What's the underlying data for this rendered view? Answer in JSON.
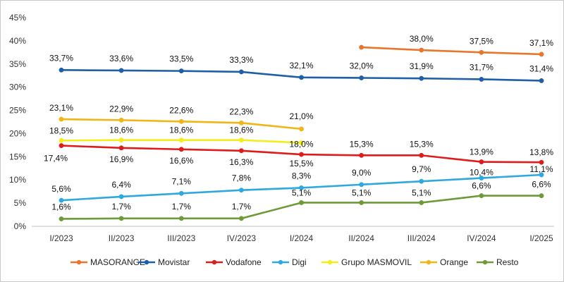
{
  "chart_data": {
    "type": "line",
    "categories": [
      "I/2023",
      "II/2023",
      "III/2023",
      "IV/2023",
      "I/2024",
      "II/2024",
      "III/2024",
      "IV/2024",
      "I/2025"
    ],
    "ylim": [
      0,
      45
    ],
    "yticks": [
      "0%",
      "5%",
      "10%",
      "15%",
      "20%",
      "25%",
      "30%",
      "35%",
      "40%",
      "45%"
    ],
    "grid": false,
    "legend_position": "bottom",
    "series": [
      {
        "name": "MASORANGE",
        "color": "#E8772E",
        "values": [
          null,
          null,
          null,
          null,
          null,
          38.6,
          38.0,
          37.5,
          37.1
        ],
        "labels": [
          null,
          null,
          null,
          null,
          null,
          null,
          "38,0%",
          "37,5%",
          "37,1%"
        ]
      },
      {
        "name": "Movistar",
        "color": "#1F5FA8",
        "values": [
          33.7,
          33.6,
          33.5,
          33.3,
          32.1,
          32.0,
          31.9,
          31.7,
          31.4
        ],
        "labels": [
          "33,7%",
          "33,6%",
          "33,5%",
          "33,3%",
          "32,1%",
          "32,0%",
          "31,9%",
          "31,7%",
          "31,4%"
        ]
      },
      {
        "name": "Vodafone",
        "color": "#E01B1B",
        "values": [
          17.4,
          16.9,
          16.6,
          16.3,
          15.5,
          15.3,
          15.3,
          13.9,
          13.8
        ],
        "labels": [
          "17,4%",
          "16,9%",
          "16,6%",
          "16,3%",
          "15,5%",
          "15,3%",
          "15,3%",
          "13,9%",
          "13,8%"
        ]
      },
      {
        "name": "Digi",
        "color": "#2EA8E0",
        "values": [
          5.6,
          6.4,
          7.1,
          7.8,
          8.3,
          9.0,
          9.7,
          10.4,
          11.1
        ],
        "labels": [
          "5,6%",
          "6,4%",
          "7,1%",
          "7,8%",
          "8,3%",
          "9,0%",
          "9,7%",
          "10,4%",
          "11,1%"
        ]
      },
      {
        "name": "Grupo MASMOVIL",
        "color": "#F5EC1C",
        "values": [
          18.5,
          18.6,
          18.6,
          18.6,
          18.0,
          null,
          null,
          null,
          null
        ],
        "labels": [
          "18,5%",
          "18,6%",
          "18,6%",
          "18,6%",
          "18,0%",
          null,
          null,
          null,
          null
        ]
      },
      {
        "name": "Orange",
        "color": "#F2B516",
        "values": [
          23.1,
          22.9,
          22.6,
          22.3,
          21.0,
          null,
          null,
          null,
          null
        ],
        "labels": [
          "23,1%",
          "22,9%",
          "22,6%",
          "22,3%",
          "21,0%",
          null,
          null,
          null,
          null
        ]
      },
      {
        "name": "Resto",
        "color": "#6F9A3A",
        "values": [
          1.6,
          1.7,
          1.7,
          1.7,
          5.1,
          5.1,
          5.1,
          6.6,
          6.6
        ],
        "labels": [
          "1,6%",
          "1,7%",
          "1,7%",
          "1,7%",
          "5,1%",
          "5,1%",
          "5,1%",
          "6,6%",
          "6,6%"
        ]
      }
    ]
  }
}
